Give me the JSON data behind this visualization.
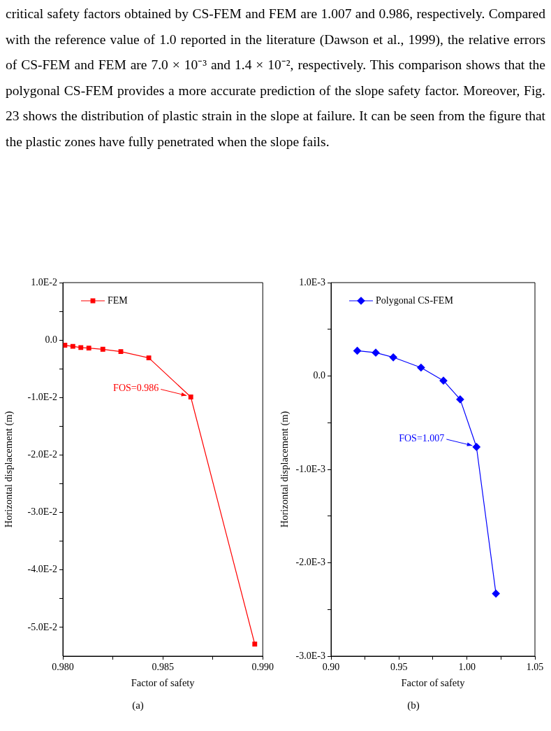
{
  "chart_data": [
    {
      "type": "line",
      "xlabel": "Factor of safety",
      "ylabel": "Horizontal displacement (m)",
      "xlim": [
        0.98,
        0.99
      ],
      "ylim": [
        -0.055,
        0.01
      ],
      "xticks": [
        {
          "value": 0.98,
          "label": "0.980"
        },
        {
          "value": 0.9825,
          "label": null
        },
        {
          "value": 0.985,
          "label": "0.985"
        },
        {
          "value": 0.9875,
          "label": null
        },
        {
          "value": 0.99,
          "label": "0.990"
        }
      ],
      "yticks": [
        {
          "value": 0.01,
          "label": "1.0E-2"
        },
        {
          "value": 0.005,
          "label": null
        },
        {
          "value": 0,
          "label": "0.0"
        },
        {
          "value": -0.005,
          "label": null
        },
        {
          "value": -0.01,
          "label": "-1.0E-2"
        },
        {
          "value": -0.015,
          "label": null
        },
        {
          "value": -0.02,
          "label": "-2.0E-2"
        },
        {
          "value": -0.025,
          "label": null
        },
        {
          "value": -0.03,
          "label": "-3.0E-2"
        },
        {
          "value": -0.035,
          "label": null
        },
        {
          "value": -0.04,
          "label": "-4.0E-2"
        },
        {
          "value": -0.045,
          "label": null
        },
        {
          "value": -0.05,
          "label": "-5.0E-2"
        }
      ],
      "grid": false,
      "legend": "top left",
      "marker": "square",
      "line_style": "solid",
      "series": [
        {
          "name": "FEM",
          "color": "#ff0000",
          "x": [
            0.9801,
            0.9805,
            0.9809,
            0.9813,
            0.982,
            0.9829,
            0.9843,
            0.9864,
            0.9896
          ],
          "values": [
            -0.0009,
            -0.0011,
            -0.0013,
            -0.0014,
            -0.0016,
            -0.002,
            -0.0031,
            -0.0099,
            -0.0529
          ]
        }
      ],
      "annotations": [
        "critical safety factors obtained by CS-FEM and FEM are 1.007 and 0.986, respectively. Compared with the reference value of 1.0 reported in the literature (Dawson et al., 1999), the relative errors of CS-FEM and FEM are 7.0 × 10⁻³ and 1.4 × 10⁻², respectively. This comparison shows that the polygonal CS-FEM provides a more accurate prediction of the slope safety factor. Moreover, Fig. 23 shows the distribution of plastic strain in the slope at failure. It can be seen from the figure that the plastic zones have fully penetrated when the slope fails.",
        "(a)",
        {
          "text": "FOS=0.986",
          "x": 0.9864,
          "y": -0.0099
        }
      ]
    },
    {
      "type": "line",
      "xlabel": "Factor of safety",
      "ylabel": "Horizontal displacement (m)",
      "xlim": [
        0.9,
        1.05
      ],
      "ylim": [
        -0.003,
        0.001
      ],
      "xticks": [
        {
          "value": 0.9,
          "label": "0.90"
        },
        {
          "value": 0.925,
          "label": null
        },
        {
          "value": 0.95,
          "label": "0.95"
        },
        {
          "value": 0.975,
          "label": null
        },
        {
          "value": 1.0,
          "label": "1.00"
        },
        {
          "value": 1.025,
          "label": null
        },
        {
          "value": 1.05,
          "label": "1.05"
        }
      ],
      "yticks": [
        {
          "value": 0.001,
          "label": "1.0E-3"
        },
        {
          "value": 0.0005,
          "label": null
        },
        {
          "value": 0,
          "label": "0.0"
        },
        {
          "value": -0.0005,
          "label": null
        },
        {
          "value": -0.001,
          "label": "-1.0E-3"
        },
        {
          "value": -0.0015,
          "label": null
        },
        {
          "value": -0.002,
          "label": "-2.0E-3"
        },
        {
          "value": -0.0025,
          "label": null
        },
        {
          "value": -0.003,
          "label": "-3.0E-3"
        }
      ],
      "grid": false,
      "legend": "top left",
      "marker": "diamond",
      "line_style": "solid",
      "series": [
        {
          "name": "Polygonal CS-FEM",
          "color": "#0000ff",
          "x": [
            0.9193,
            0.9329,
            0.9458,
            0.9662,
            0.9827,
            0.995,
            1.007,
            1.0213
          ],
          "values": [
            0.00027,
            0.00025,
            0.0002,
            9e-05,
            -5e-05,
            -0.00025,
            -0.00076,
            -0.00233
          ]
        }
      ],
      "annotations": [
        "(b)",
        {
          "text": "FOS=1.007",
          "x": 1.007,
          "y": -0.00076
        }
      ]
    }
  ]
}
